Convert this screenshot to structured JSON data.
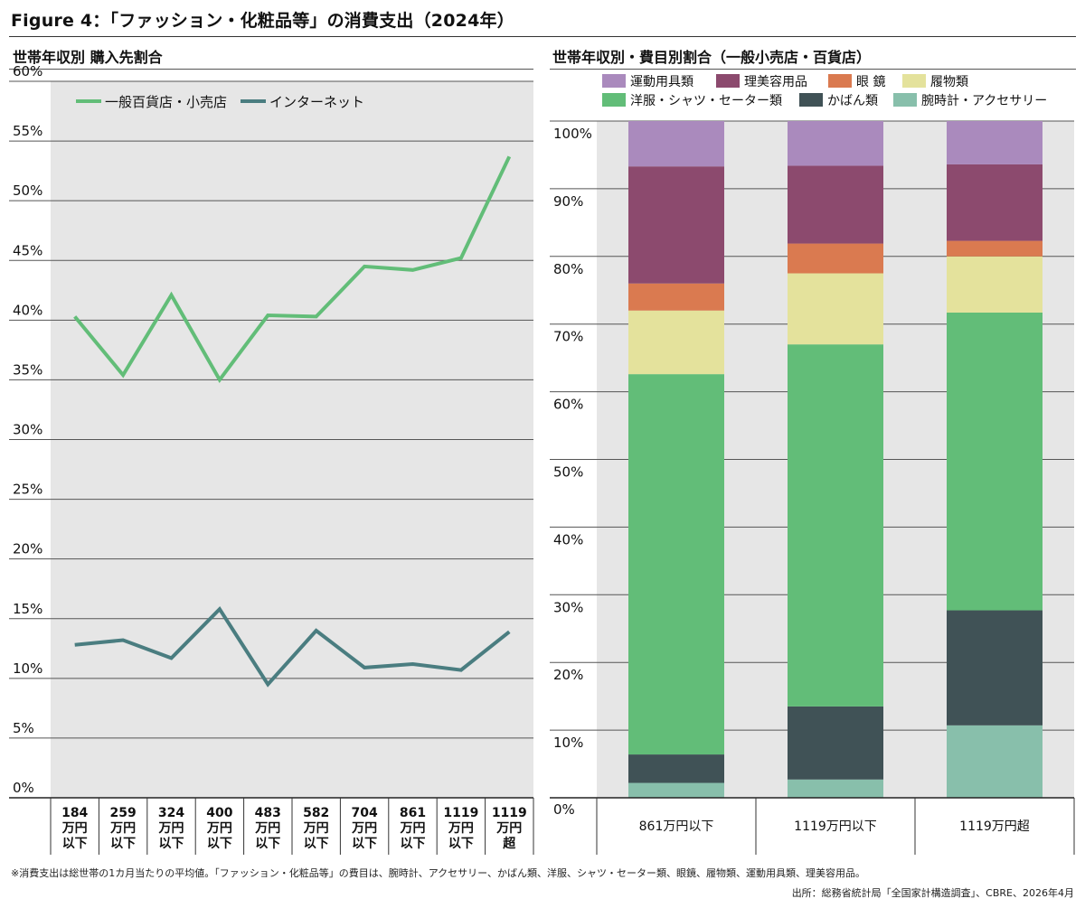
{
  "figure_title": "Figure 4：「ファッション・化粧品等」の消費支出（2024年）",
  "note": "※消費支出は総世帯の1カ月当たりの平均値。「ファッション・化粧品等」の費目は、腕時計、アクセサリー、かばん類、洋服、シャツ・セーター類、眼鏡、履物類、運動用具類、理美容用品。",
  "source": "出所：総務省統計局「全国家計構造調査」、CBRE、2026年4月",
  "chart_data": [
    {
      "type": "line",
      "title": "世帯年収別 購入先割合",
      "categories": [
        [
          "184",
          "万円",
          "以下"
        ],
        [
          "259",
          "万円",
          "以下"
        ],
        [
          "324",
          "万円",
          "以下"
        ],
        [
          "400",
          "万円",
          "以下"
        ],
        [
          "483",
          "万円",
          "以下"
        ],
        [
          "582",
          "万円",
          "以下"
        ],
        [
          "704",
          "万円",
          "以下"
        ],
        [
          "861",
          "万円",
          "以下"
        ],
        [
          "1119",
          "万円",
          "以下"
        ],
        [
          "1119",
          "万円",
          "超"
        ]
      ],
      "y_ticks": [
        "60%",
        "55%",
        "50%",
        "45%",
        "40%",
        "35%",
        "30%",
        "25%",
        "20%",
        "15%",
        "10%",
        "5%",
        "0%"
      ],
      "ylim": [
        0,
        60
      ],
      "series": [
        {
          "name": "一般百貨店・小売店",
          "color": "#62bd78",
          "values": [
            40.3,
            35.4,
            42.1,
            35.0,
            40.4,
            40.3,
            44.5,
            44.2,
            45.2,
            53.7
          ]
        },
        {
          "name": "インターネット",
          "color": "#4a7d80",
          "values": [
            12.8,
            13.2,
            11.7,
            15.8,
            9.5,
            14.0,
            10.9,
            11.2,
            10.7,
            13.9
          ]
        }
      ],
      "grid": true,
      "legend_position": "top-left"
    },
    {
      "type": "bar",
      "stacked": true,
      "title": "世帯年収別・費目別割合（一般小売店・百貨店）",
      "categories": [
        "861万円以下",
        "1119万円以下",
        "1119万円超"
      ],
      "y_ticks": [
        "100%",
        "90%",
        "80%",
        "70%",
        "60%",
        "50%",
        "40%",
        "30%",
        "20%",
        "10%",
        "0%"
      ],
      "ylim": [
        0,
        100
      ],
      "series": [
        {
          "name": "腕時計・アクセサリー",
          "color": "#88bfab",
          "values": [
            2.2,
            2.7,
            10.7
          ]
        },
        {
          "name": "かばん類",
          "color": "#405256",
          "values": [
            4.2,
            10.8,
            17.0
          ]
        },
        {
          "name": "洋服・シャツ・セーター類",
          "color": "#62bd78",
          "values": [
            56.2,
            53.5,
            44.0
          ]
        },
        {
          "name": "履物類",
          "color": "#e4e29c",
          "values": [
            9.4,
            10.5,
            8.3
          ]
        },
        {
          "name": "眼 鏡",
          "color": "#da7a50",
          "values": [
            4.0,
            4.4,
            2.3
          ]
        },
        {
          "name": "理美容用品",
          "color": "#8c4a6e",
          "values": [
            17.3,
            11.5,
            11.3
          ]
        },
        {
          "name": "運動用具類",
          "color": "#aa8abd",
          "values": [
            6.7,
            6.6,
            6.4
          ]
        }
      ],
      "legend_order": [
        "運動用具類",
        "理美容用品",
        "眼 鏡",
        "履物類",
        "洋服・シャツ・セーター類",
        "かばん類",
        "腕時計・アクセサリー"
      ],
      "grid": true,
      "legend_position": "top"
    }
  ]
}
